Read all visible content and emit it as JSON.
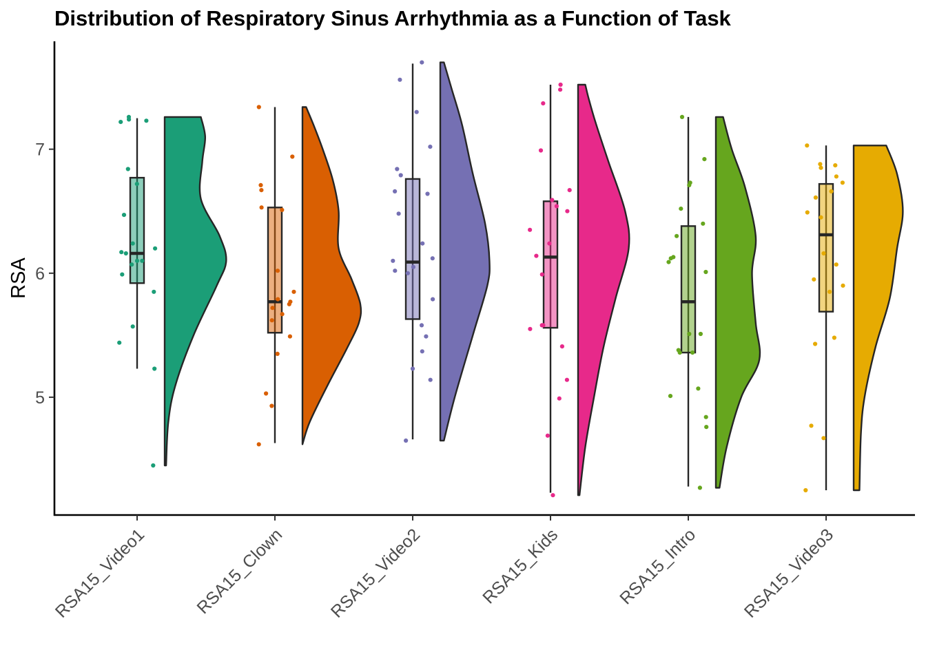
{
  "chart_data": {
    "type": "raincloud",
    "title": "Distribution of Respiratory Sinus Arrhythmia as a Function of Task",
    "xlabel": "",
    "ylabel": "RSA",
    "ylim": [
      4.05,
      7.87
    ],
    "yticks": [
      5,
      6,
      7
    ],
    "legend": "none",
    "grid": false,
    "categories": [
      "RSA15_Video1",
      "RSA15_Clown",
      "RSA15_Video2",
      "RSA15_Kids",
      "RSA15_Intro",
      "RSA15_Video3"
    ],
    "series": [
      {
        "category": "RSA15_Video1",
        "color": "#1B9E77",
        "box": {
          "min": 5.23,
          "q1": 5.92,
          "median": 6.16,
          "q3": 6.77,
          "max": 7.25
        },
        "density": [
          [
            4.45,
            0.02
          ],
          [
            4.8,
            0.05
          ],
          [
            5.1,
            0.15
          ],
          [
            5.5,
            0.4
          ],
          [
            5.9,
            0.72
          ],
          [
            6.1,
            0.85
          ],
          [
            6.3,
            0.76
          ],
          [
            6.6,
            0.5
          ],
          [
            6.9,
            0.52
          ],
          [
            7.1,
            0.56
          ],
          [
            7.26,
            0.5
          ]
        ],
        "points": [
          4.45,
          5.23,
          5.44,
          5.57,
          5.85,
          5.99,
          6.07,
          6.1,
          6.1,
          6.16,
          6.17,
          6.2,
          6.24,
          6.47,
          6.72,
          6.84,
          7.22,
          7.23,
          7.24,
          7.26
        ]
      },
      {
        "category": "RSA15_Clown",
        "color": "#D95F02",
        "box": {
          "min": 4.63,
          "q1": 5.52,
          "median": 5.77,
          "q3": 6.53,
          "max": 7.34
        },
        "density": [
          [
            4.62,
            0.0
          ],
          [
            4.8,
            0.1
          ],
          [
            5.1,
            0.35
          ],
          [
            5.4,
            0.62
          ],
          [
            5.6,
            0.78
          ],
          [
            5.75,
            0.8
          ],
          [
            5.95,
            0.68
          ],
          [
            6.2,
            0.5
          ],
          [
            6.5,
            0.5
          ],
          [
            6.75,
            0.42
          ],
          [
            7.0,
            0.28
          ],
          [
            7.2,
            0.15
          ],
          [
            7.34,
            0.05
          ]
        ],
        "points": [
          4.62,
          4.93,
          5.03,
          5.35,
          5.49,
          5.62,
          5.67,
          5.72,
          5.75,
          5.77,
          5.79,
          5.85,
          6.02,
          6.51,
          6.53,
          6.67,
          6.71,
          6.94,
          7.34
        ]
      },
      {
        "category": "RSA15_Video2",
        "color": "#7570B3",
        "box": {
          "min": 4.66,
          "q1": 5.63,
          "median": 6.09,
          "q3": 6.76,
          "max": 7.69
        },
        "density": [
          [
            4.65,
            0.05
          ],
          [
            5.0,
            0.2
          ],
          [
            5.5,
            0.45
          ],
          [
            5.9,
            0.65
          ],
          [
            6.1,
            0.68
          ],
          [
            6.4,
            0.62
          ],
          [
            6.8,
            0.45
          ],
          [
            7.2,
            0.3
          ],
          [
            7.5,
            0.15
          ],
          [
            7.7,
            0.05
          ]
        ],
        "points": [
          4.65,
          5.14,
          5.23,
          5.37,
          5.49,
          5.58,
          5.79,
          6.0,
          6.02,
          6.05,
          6.1,
          6.12,
          6.24,
          6.48,
          6.64,
          6.66,
          6.79,
          6.84,
          7.02,
          7.3,
          7.56,
          7.7
        ]
      },
      {
        "category": "RSA15_Kids",
        "color": "#E7298A",
        "box": {
          "min": 4.23,
          "q1": 5.56,
          "median": 6.13,
          "q3": 6.58,
          "max": 7.52
        },
        "density": [
          [
            4.21,
            0.02
          ],
          [
            4.6,
            0.1
          ],
          [
            5.0,
            0.22
          ],
          [
            5.4,
            0.35
          ],
          [
            5.8,
            0.52
          ],
          [
            6.2,
            0.7
          ],
          [
            6.5,
            0.65
          ],
          [
            6.9,
            0.42
          ],
          [
            7.2,
            0.25
          ],
          [
            7.4,
            0.15
          ],
          [
            7.52,
            0.1
          ]
        ],
        "points": [
          4.21,
          4.69,
          4.99,
          5.14,
          5.41,
          5.55,
          5.58,
          5.58,
          5.99,
          6.14,
          6.24,
          6.35,
          6.5,
          6.54,
          6.59,
          6.67,
          6.99,
          7.37,
          7.48,
          7.52
        ]
      },
      {
        "category": "RSA15_Intro",
        "color": "#66A61E",
        "box": {
          "min": 4.28,
          "q1": 5.36,
          "median": 5.77,
          "q3": 6.38,
          "max": 7.26
        },
        "density": [
          [
            4.27,
            0.05
          ],
          [
            4.6,
            0.15
          ],
          [
            5.0,
            0.35
          ],
          [
            5.3,
            0.6
          ],
          [
            5.6,
            0.55
          ],
          [
            6.0,
            0.5
          ],
          [
            6.3,
            0.55
          ],
          [
            6.7,
            0.4
          ],
          [
            7.0,
            0.22
          ],
          [
            7.26,
            0.1
          ]
        ],
        "points": [
          4.27,
          4.76,
          4.84,
          5.01,
          5.07,
          5.36,
          5.36,
          5.38,
          5.51,
          5.51,
          6.01,
          6.09,
          6.12,
          6.13,
          6.3,
          6.4,
          6.52,
          6.71,
          6.73,
          6.92,
          7.26
        ]
      },
      {
        "category": "RSA15_Video3",
        "color": "#E6AB02",
        "box": {
          "min": 4.25,
          "q1": 5.69,
          "median": 6.31,
          "q3": 6.72,
          "max": 7.03
        },
        "density": [
          [
            4.25,
            0.08
          ],
          [
            4.7,
            0.1
          ],
          [
            5.0,
            0.15
          ],
          [
            5.4,
            0.3
          ],
          [
            5.8,
            0.5
          ],
          [
            6.2,
            0.6
          ],
          [
            6.5,
            0.68
          ],
          [
            6.8,
            0.6
          ],
          [
            7.03,
            0.45
          ]
        ],
        "points": [
          4.25,
          4.67,
          4.77,
          5.43,
          5.48,
          5.85,
          5.9,
          5.95,
          6.07,
          6.16,
          6.45,
          6.49,
          6.61,
          6.66,
          6.73,
          6.78,
          6.85,
          6.87,
          6.88,
          7.03
        ]
      }
    ]
  }
}
